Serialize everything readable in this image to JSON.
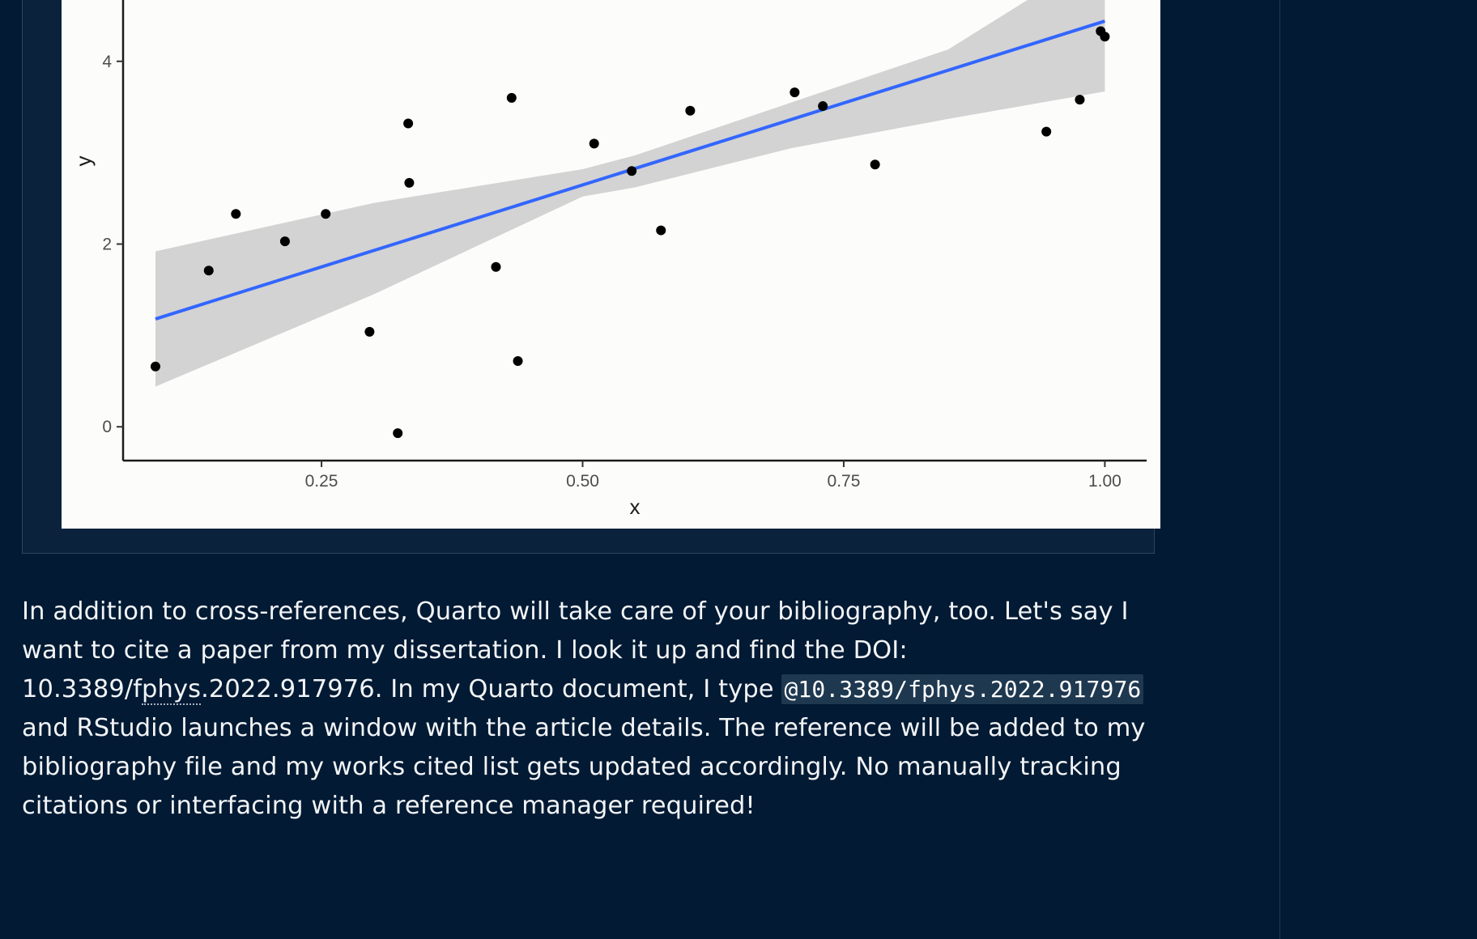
{
  "chart_data": {
    "type": "scatter",
    "xlabel": "x",
    "ylabel": "y",
    "xlim": [
      0.06,
      1.04
    ],
    "ylim": [
      -0.37,
      4.68
    ],
    "x_ticks": [
      0.25,
      0.5,
      0.75,
      1.0
    ],
    "x_tick_labels": [
      "0.25",
      "0.50",
      "0.75",
      "1.00"
    ],
    "y_ticks": [
      0,
      2,
      4
    ],
    "y_tick_labels": [
      "0",
      "2",
      "4"
    ],
    "grid": false,
    "legend": "none",
    "points": [
      {
        "x": 0.091,
        "y": 0.66
      },
      {
        "x": 0.142,
        "y": 1.71
      },
      {
        "x": 0.168,
        "y": 2.33
      },
      {
        "x": 0.215,
        "y": 2.03
      },
      {
        "x": 0.254,
        "y": 2.33
      },
      {
        "x": 0.296,
        "y": 1.04
      },
      {
        "x": 0.323,
        "y": -0.07
      },
      {
        "x": 0.333,
        "y": 3.32
      },
      {
        "x": 0.334,
        "y": 2.67
      },
      {
        "x": 0.417,
        "y": 1.75
      },
      {
        "x": 0.432,
        "y": 3.6
      },
      {
        "x": 0.438,
        "y": 0.72
      },
      {
        "x": 0.511,
        "y": 3.1
      },
      {
        "x": 0.547,
        "y": 2.8
      },
      {
        "x": 0.575,
        "y": 2.15
      },
      {
        "x": 0.603,
        "y": 3.46
      },
      {
        "x": 0.703,
        "y": 3.66
      },
      {
        "x": 0.73,
        "y": 3.51
      },
      {
        "x": 0.78,
        "y": 2.87
      },
      {
        "x": 0.944,
        "y": 3.23
      },
      {
        "x": 0.976,
        "y": 3.58
      },
      {
        "x": 0.996,
        "y": 4.33
      },
      {
        "x": 1.0,
        "y": 4.27
      }
    ],
    "fit_line": {
      "x": [
        0.091,
        1.0
      ],
      "y": [
        1.18,
        4.44
      ]
    },
    "confidence_band": {
      "x": [
        0.091,
        0.3,
        0.5,
        0.55,
        0.7,
        0.85,
        1.0
      ],
      "upper": [
        1.92,
        2.45,
        2.82,
        2.97,
        3.55,
        4.13,
        5.2
      ],
      "lower": [
        0.44,
        1.45,
        2.52,
        2.62,
        3.05,
        3.37,
        3.67
      ]
    },
    "colors": {
      "points": "#000000",
      "fit_line": "#3366ff",
      "band": "#d1d1d1",
      "panel": "#fcfcfb"
    }
  },
  "paragraph": {
    "part1": "In addition to cross-references, Quarto will take care of your bibliography, too. Let's say I want to cite a paper from my dissertation. I look it up and find the DOI: ",
    "doi_prefix": "10.3389/f",
    "doi_abbr": "phys",
    "doi_suffix": ".2022.917976",
    "part2": ". In my Quarto document, I type ",
    "code": "@10.3389/fphys.2022.917976",
    "part3": " and RStudio launches a window with the article details. The reference will be added to my bibliography file and my works cited list gets updated accordingly. No manually tracking citations or interfacing with a reference manager required!"
  }
}
